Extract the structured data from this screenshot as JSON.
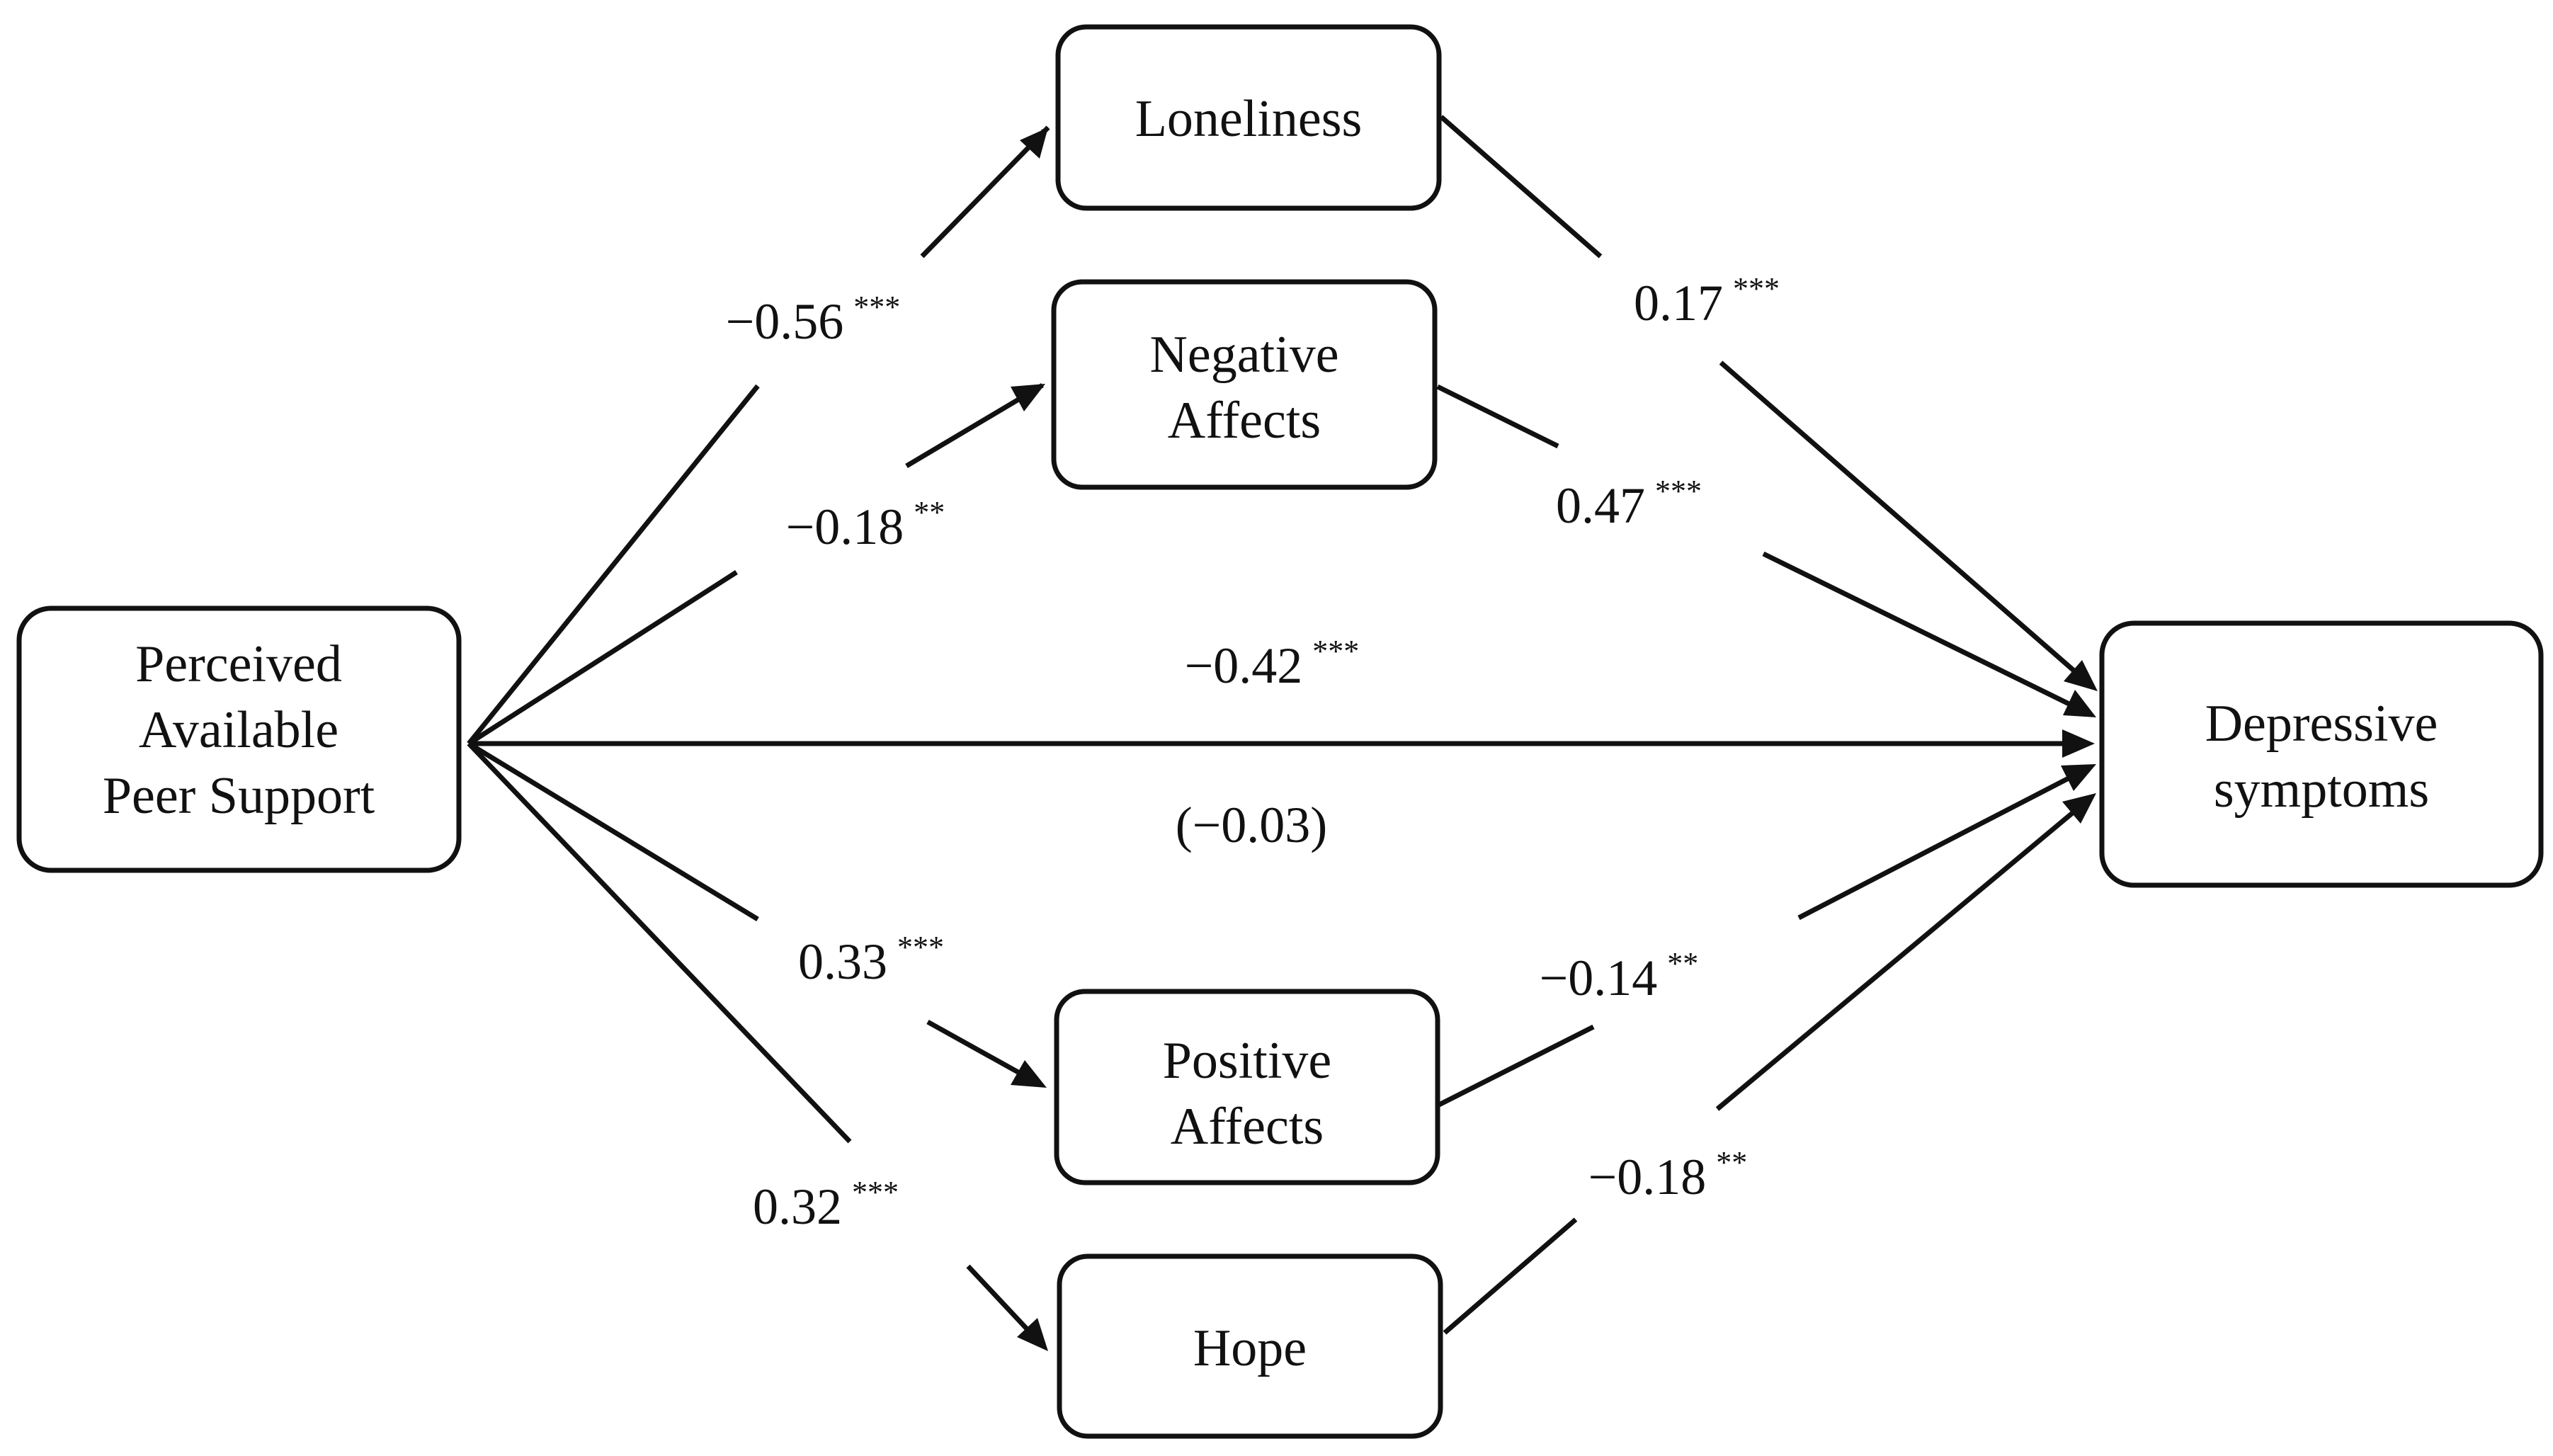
{
  "diagram": {
    "nodes": {
      "predictor": {
        "lines": [
          "Perceived",
          "Available",
          "Peer Support"
        ]
      },
      "loneliness": {
        "lines": [
          "Loneliness"
        ]
      },
      "negative_affects": {
        "lines": [
          "Negative",
          "Affects"
        ]
      },
      "positive_affects": {
        "lines": [
          "Positive",
          "Affects"
        ]
      },
      "hope": {
        "lines": [
          "Hope"
        ]
      },
      "outcome": {
        "lines": [
          "Depressive",
          "symptoms"
        ]
      }
    },
    "paths": {
      "peer_to_loneliness": {
        "coef": "−0.56",
        "sig": "***"
      },
      "peer_to_negative": {
        "coef": "−0.18",
        "sig": "**"
      },
      "peer_to_positive": {
        "coef": "0.33",
        "sig": "***"
      },
      "peer_to_hope": {
        "coef": "0.32",
        "sig": "***"
      },
      "loneliness_to_depressive": {
        "coef": "0.17",
        "sig": "***"
      },
      "negative_to_depressive": {
        "coef": "0.47",
        "sig": "***"
      },
      "positive_to_depressive": {
        "coef": "−0.14",
        "sig": "**"
      },
      "hope_to_depressive": {
        "coef": "−0.18",
        "sig": "**"
      },
      "total_effect": {
        "coef": "−0.42",
        "sig": "***"
      },
      "direct_effect": {
        "coef": "(−0.03)",
        "sig": ""
      }
    }
  }
}
